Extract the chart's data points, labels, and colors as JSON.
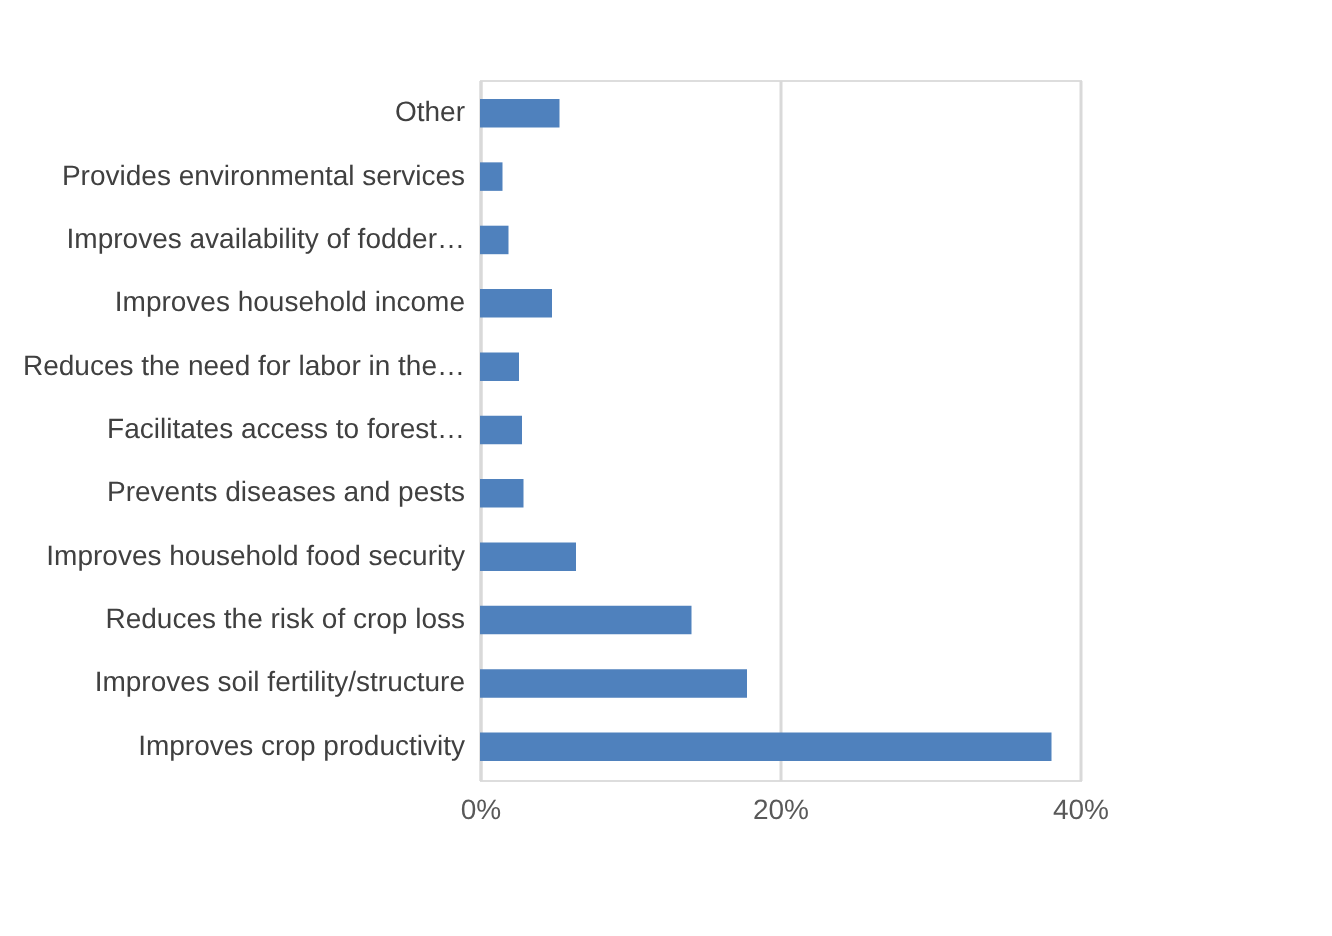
{
  "chart_data": {
    "type": "bar",
    "orientation": "horizontal",
    "categories": [
      "Other",
      "Provides environmental services",
      "Improves availability of fodder…",
      "Improves household income",
      "Reduces the need for labor in the…",
      "Facilitates access to forest…",
      "Prevents diseases and pests",
      "Improves household food security",
      "Reduces the risk of crop loss",
      "Improves soil fertility/structure",
      "Improves crop productivity"
    ],
    "values": [
      5.3,
      1.5,
      1.9,
      4.8,
      2.6,
      2.8,
      2.9,
      6.4,
      14.1,
      17.8,
      38.1
    ],
    "color": "#4f81bd",
    "xlim": [
      0,
      40
    ],
    "xticks": [
      {
        "value": 0,
        "label": "0%"
      },
      {
        "value": 20,
        "label": "20%"
      },
      {
        "value": 40,
        "label": "40%"
      }
    ],
    "grid": "x"
  }
}
